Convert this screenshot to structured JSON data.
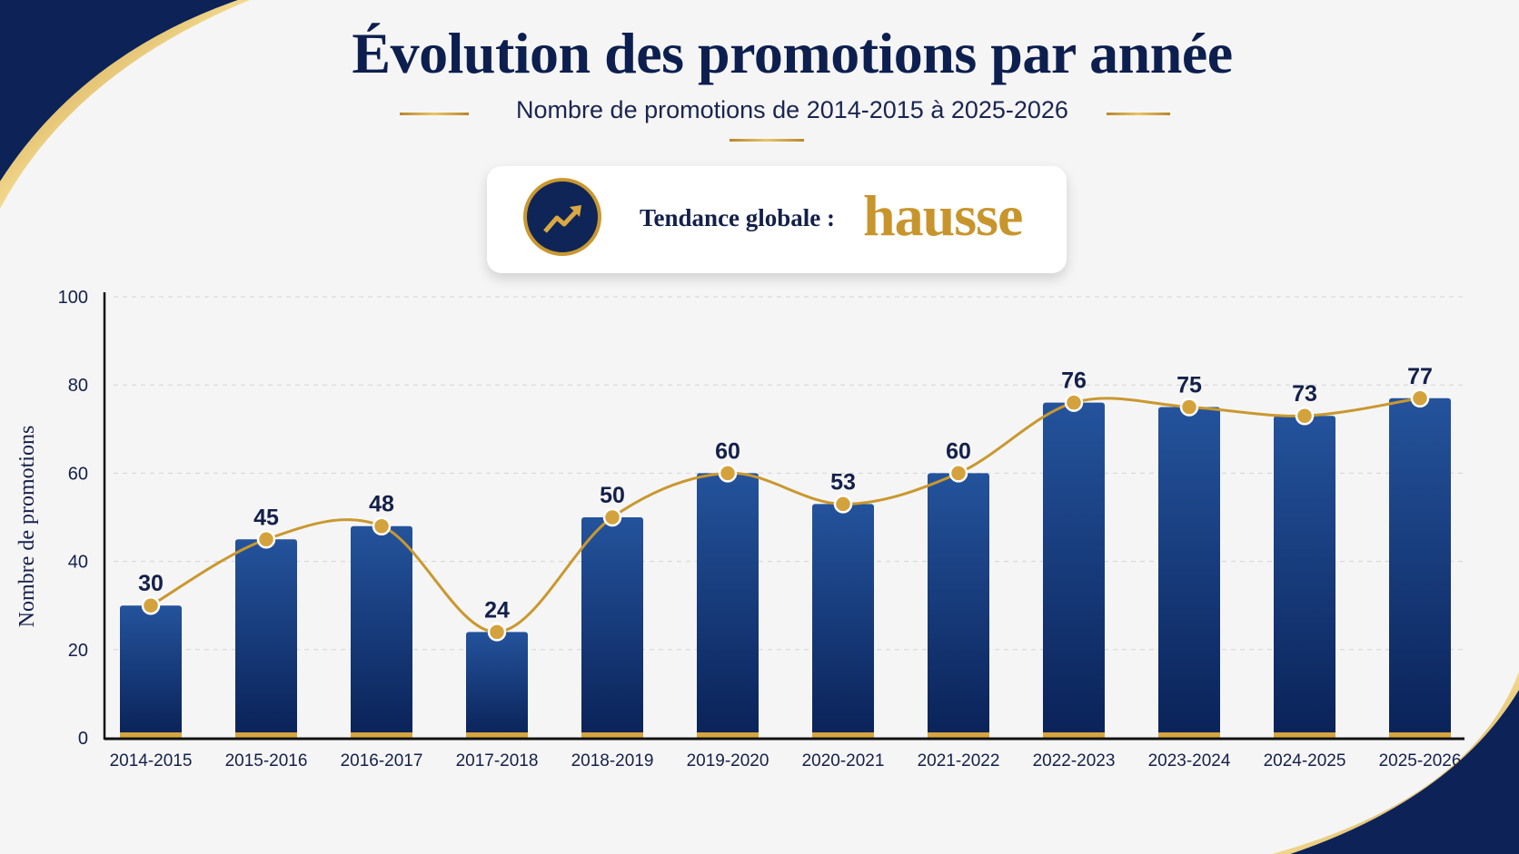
{
  "title": "Évolution des promotions par année",
  "subtitle": "Nombre de promotions de 2014-2015 à 2025-2026",
  "trend": {
    "label": "Tendance globale :",
    "value": "hausse",
    "icon": "trending-up-icon"
  },
  "colors": {
    "navy": "#0f2a66",
    "gold": "#c8952d",
    "background": "#f5f5f5"
  },
  "chart_data": {
    "type": "bar",
    "title": "Évolution des promotions par année",
    "subtitle": "Nombre de promotions de 2014-2015 à 2025-2026",
    "xlabel": "",
    "ylabel": "Nombre de promotions",
    "ylim": [
      0,
      100
    ],
    "yticks": [
      0,
      20,
      40,
      60,
      80,
      100
    ],
    "grid": true,
    "categories": [
      "2014-2015",
      "2015-2016",
      "2016-2017",
      "2017-2018",
      "2018-2019",
      "2019-2020",
      "2020-2021",
      "2021-2022",
      "2022-2023",
      "2023-2024",
      "2024-2025",
      "2025-2026"
    ],
    "values": [
      30,
      45,
      48,
      24,
      50,
      60,
      53,
      60,
      76,
      75,
      73,
      77
    ],
    "overlay": "smooth line with markers through bar values"
  }
}
